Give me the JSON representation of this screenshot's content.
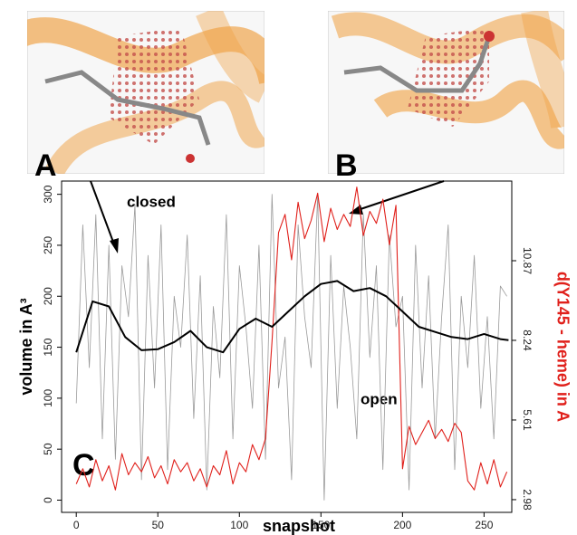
{
  "chart_data": {
    "type": "line",
    "xlabel": "snapshot",
    "ylabel": "volume in A³",
    "y2label": "d(Y145 - heme) in A",
    "panel_labels": [
      "A",
      "B",
      "C"
    ],
    "annotations": [
      "closed",
      "open"
    ],
    "xlim": [
      -9,
      267
    ],
    "xticks": [
      0,
      50,
      100,
      150,
      200,
      250
    ],
    "ylim": [
      -12,
      313
    ],
    "yticks": [
      0,
      50,
      100,
      150,
      200,
      250,
      300
    ],
    "y2lim": [
      2.56,
      13.5
    ],
    "y2ticks": [
      2.98,
      5.61,
      8.24,
      10.87
    ],
    "y2color": "#e0201b",
    "series": [
      {
        "color": "#9a9a9a",
        "width": 0.8,
        "x": [
          0,
          4,
          8,
          12,
          16,
          20,
          24,
          28,
          32,
          36,
          40,
          44,
          48,
          52,
          56,
          60,
          64,
          68,
          72,
          76,
          80,
          84,
          88,
          92,
          96,
          100,
          104,
          108,
          112,
          116,
          120,
          124,
          128,
          132,
          136,
          140,
          144,
          148,
          152,
          156,
          160,
          164,
          168,
          172,
          176,
          180,
          184,
          188,
          192,
          196,
          200,
          204,
          208,
          212,
          216,
          220,
          224,
          228,
          232,
          236,
          240,
          244,
          248,
          252,
          256,
          260,
          264
        ],
        "values": [
          95,
          270,
          130,
          280,
          60,
          250,
          40,
          230,
          180,
          290,
          20,
          240,
          110,
          270,
          30,
          200,
          150,
          260,
          80,
          220,
          10,
          190,
          120,
          280,
          60,
          230,
          170,
          90,
          250,
          40,
          300,
          110,
          160,
          20,
          270,
          180,
          130,
          300,
          0,
          240,
          90,
          210,
          150,
          60,
          280,
          140,
          230,
          30,
          260,
          170,
          200,
          10,
          250,
          110,
          220,
          60,
          180,
          270,
          30,
          200,
          130,
          240,
          90,
          180,
          60,
          210,
          200
        ]
      },
      {
        "color": "#e0201b",
        "width": 1.1,
        "axis": "y2",
        "x": [
          0,
          4,
          8,
          12,
          16,
          20,
          24,
          28,
          32,
          36,
          40,
          44,
          48,
          52,
          56,
          60,
          64,
          68,
          72,
          76,
          80,
          84,
          88,
          92,
          96,
          100,
          104,
          108,
          112,
          116,
          120,
          124,
          128,
          132,
          136,
          140,
          144,
          148,
          152,
          156,
          160,
          164,
          168,
          172,
          176,
          180,
          184,
          188,
          192,
          196,
          200,
          204,
          208,
          212,
          216,
          220,
          224,
          228,
          232,
          236,
          240,
          244,
          248,
          252,
          256,
          260,
          264
        ],
        "values": [
          3.5,
          4.0,
          3.4,
          4.3,
          3.6,
          4.1,
          3.3,
          4.5,
          3.8,
          4.2,
          3.9,
          4.4,
          3.7,
          4.1,
          3.5,
          4.3,
          3.9,
          4.2,
          3.6,
          4.0,
          3.4,
          4.1,
          3.8,
          4.6,
          3.5,
          4.2,
          3.9,
          4.8,
          4.3,
          5.0,
          8.2,
          11.8,
          12.4,
          10.9,
          12.8,
          11.6,
          12.2,
          13.1,
          11.5,
          12.6,
          11.9,
          12.4,
          12.0,
          13.3,
          11.7,
          12.5,
          12.1,
          12.9,
          11.4,
          12.7,
          4.0,
          5.4,
          4.8,
          5.2,
          5.6,
          5.0,
          5.3,
          4.9,
          5.5,
          5.2,
          3.6,
          3.3,
          4.2,
          3.5,
          4.3,
          3.4,
          3.9
        ]
      },
      {
        "color": "#000000",
        "width": 2,
        "x": [
          0,
          10,
          20,
          30,
          40,
          50,
          60,
          70,
          80,
          90,
          100,
          110,
          120,
          130,
          140,
          150,
          160,
          170,
          180,
          190,
          200,
          210,
          220,
          230,
          240,
          250,
          260,
          265
        ],
        "values": [
          145,
          195,
          190,
          160,
          147,
          148,
          155,
          166,
          150,
          145,
          168,
          178,
          170,
          185,
          200,
          212,
          215,
          205,
          208,
          200,
          185,
          170,
          165,
          160,
          158,
          163,
          158,
          157
        ]
      }
    ]
  }
}
